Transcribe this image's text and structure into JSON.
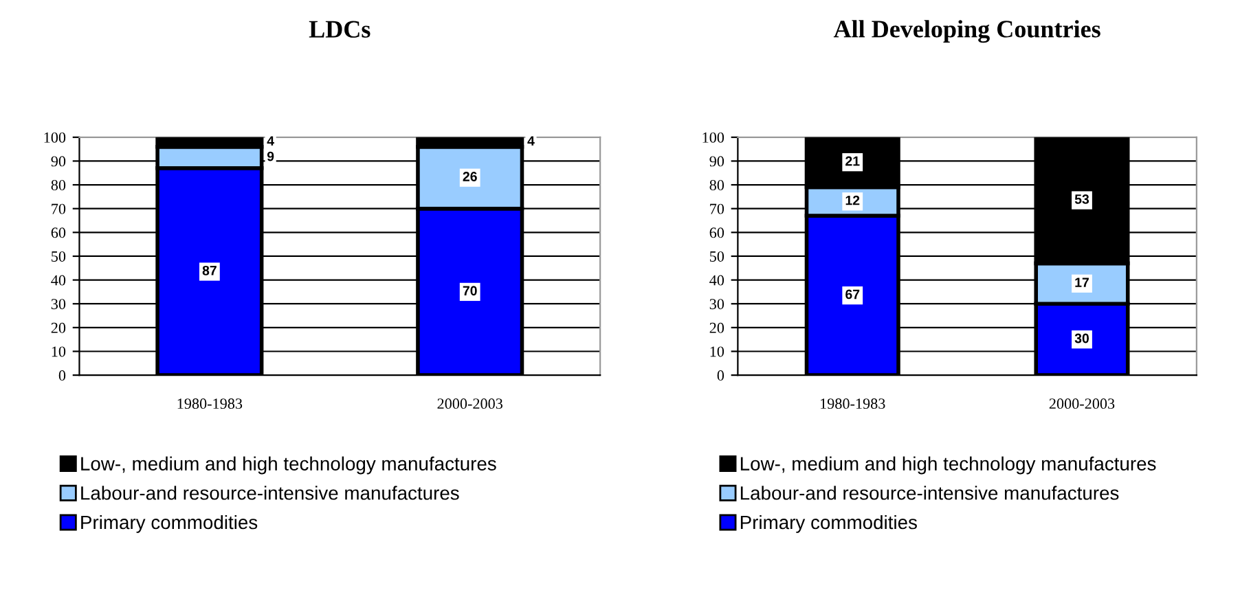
{
  "chart_data": [
    {
      "type": "bar",
      "title": "LDCs",
      "categories": [
        "1980-1983",
        "2000-2003"
      ],
      "stacked": true,
      "ylim": [
        0,
        100
      ],
      "yticks": [
        0,
        10,
        20,
        30,
        40,
        50,
        60,
        70,
        80,
        90,
        100
      ],
      "grid": "y",
      "legend": "bottom",
      "data_labels": true,
      "series": [
        {
          "name": "Primary commodities",
          "color": "#0000ff",
          "values": [
            87,
            70
          ]
        },
        {
          "name": "Labour-and resource-intensive manufactures",
          "color": "#99ccff",
          "values": [
            9,
            26
          ]
        },
        {
          "name": "Low-, medium and high technology manufactures",
          "color": "#000000",
          "values": [
            4,
            4
          ]
        }
      ]
    },
    {
      "type": "bar",
      "title": "All Developing Countries",
      "categories": [
        "1980-1983",
        "2000-2003"
      ],
      "stacked": true,
      "ylim": [
        0,
        100
      ],
      "yticks": [
        0,
        10,
        20,
        30,
        40,
        50,
        60,
        70,
        80,
        90,
        100
      ],
      "grid": "y",
      "legend": "bottom",
      "data_labels": true,
      "series": [
        {
          "name": "Primary commodities",
          "color": "#0000ff",
          "values": [
            67,
            30
          ]
        },
        {
          "name": "Labour-and resource-intensive manufactures",
          "color": "#99ccff",
          "values": [
            12,
            17
          ]
        },
        {
          "name": "Low-, medium and high technology manufactures",
          "color": "#000000",
          "values": [
            21,
            53
          ]
        }
      ]
    }
  ]
}
